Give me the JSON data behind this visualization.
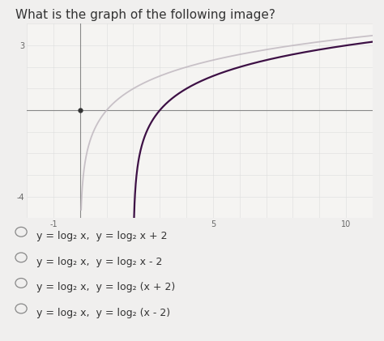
{
  "title": "What is the graph of the following image?",
  "title_fontsize": 11,
  "title_color": "#333333",
  "background_color": "#f0efee",
  "plot_background": "#f5f4f2",
  "xmin": -2,
  "xmax": 11,
  "ymin": -5,
  "ymax": 4,
  "xtick_labels": [
    "-1",
    "5",
    "10"
  ],
  "xtick_vals": [
    -1,
    5,
    10
  ],
  "ytick_vals": [
    3,
    -4
  ],
  "ytick_labels": [
    "3",
    "-4"
  ],
  "curve1_color": "#c0b8c0",
  "curve2_color": "#3d1045",
  "axis_color": "#888888",
  "dot_color": "#333333",
  "options": [
    "y = log₂ x,  y = log₂ x + 2",
    "y = log₂ x,  y = log₂ x - 2",
    "y = log₂ x,  y = log₂ (x + 2)",
    "y = log₂ x,  y = log₂ (x - 2)"
  ]
}
